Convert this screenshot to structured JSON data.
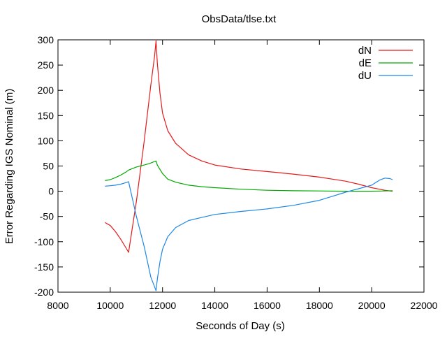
{
  "chart_data": {
    "type": "line",
    "title": "ObsData/tlse.txt",
    "xlabel": "Seconds of Day (s)",
    "ylabel": "Error Regarding IGS Nominal (m)",
    "xlim": [
      8000,
      22000
    ],
    "ylim": [
      -200,
      300
    ],
    "xticks": [
      8000,
      10000,
      12000,
      14000,
      16000,
      18000,
      20000,
      22000
    ],
    "yticks": [
      -200,
      -150,
      -100,
      -50,
      0,
      50,
      100,
      150,
      200,
      250,
      300
    ],
    "xtick_labels": [
      "8000",
      "10000",
      "12000",
      "14000",
      "16000",
      "18000",
      "20000",
      "22000"
    ],
    "ytick_labels": [
      "-200",
      "-150",
      "-100",
      "-50",
      "0",
      "50",
      "100",
      "150",
      "200",
      "250",
      "300"
    ],
    "grid": false,
    "legend_position": "top-right",
    "series": [
      {
        "name": "dN",
        "color": "#e41a1c",
        "x": [
          9800,
          10000,
          10200,
          10400,
          10600,
          10700,
          11000,
          11300,
          11550,
          11700,
          11750,
          11800,
          11900,
          12000,
          12200,
          12500,
          13000,
          13500,
          14000,
          15000,
          16000,
          17000,
          18000,
          19000,
          19500,
          20000,
          20500,
          20800
        ],
        "y": [
          -62,
          -68,
          -80,
          -95,
          -112,
          -121,
          -20,
          100,
          210,
          270,
          298,
          255,
          195,
          155,
          120,
          95,
          72,
          60,
          52,
          44,
          39,
          34,
          28,
          20,
          14,
          7,
          2,
          0
        ]
      },
      {
        "name": "dE",
        "color": "#00aa00",
        "x": [
          9800,
          10000,
          10200,
          10400,
          10600,
          10700,
          11000,
          11300,
          11500,
          11700,
          11750,
          11800,
          12000,
          12200,
          12500,
          13000,
          13500,
          14000,
          15000,
          16000,
          17000,
          18000,
          19000,
          20000,
          20500,
          20800
        ],
        "y": [
          21,
          23,
          27,
          32,
          38,
          42,
          48,
          52,
          55,
          59,
          60,
          52,
          35,
          24,
          18,
          12,
          9,
          7,
          4,
          2,
          1,
          0.5,
          0,
          0,
          0.5,
          1
        ]
      },
      {
        "name": "dU",
        "color": "#1e88e5",
        "x": [
          9800,
          10000,
          10200,
          10400,
          10600,
          10700,
          11000,
          11300,
          11550,
          11700,
          11750,
          11800,
          11900,
          12000,
          12200,
          12500,
          13000,
          13500,
          14000,
          15000,
          16000,
          17000,
          18000,
          18500,
          19000,
          19500,
          20000,
          20300,
          20500,
          20700,
          20800
        ],
        "y": [
          10,
          11,
          12,
          14,
          17,
          19,
          -50,
          -110,
          -170,
          -190,
          -197,
          -175,
          -140,
          -115,
          -90,
          -72,
          -58,
          -52,
          -46,
          -40,
          -35,
          -28,
          -18,
          -10,
          -2,
          5,
          12,
          22,
          26,
          25,
          23
        ]
      }
    ]
  }
}
